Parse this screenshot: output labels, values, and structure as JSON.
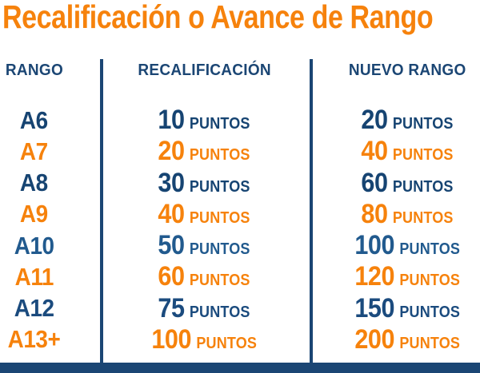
{
  "title": "Recalificación o Avance de Rango",
  "colors": {
    "orange": "#F6820C",
    "navy": "#164472",
    "steel": "#215A8E",
    "chrome": "#1B4674"
  },
  "header": {
    "columns": [
      "RANGO",
      "RECALIFICACIÓN",
      "NUEVO RANGO"
    ]
  },
  "table": {
    "points_suffix": "PUNTOS",
    "rows": [
      {
        "rank": "A6",
        "recalificacion": "10",
        "nuevo_rango": "20",
        "color": "#164472"
      },
      {
        "rank": "A7",
        "recalificacion": "20",
        "nuevo_rango": "40",
        "color": "#F6820C"
      },
      {
        "rank": "A8",
        "recalificacion": "30",
        "nuevo_rango": "60",
        "color": "#164472"
      },
      {
        "rank": "A9",
        "recalificacion": "40",
        "nuevo_rango": "80",
        "color": "#F6820C"
      },
      {
        "rank": "A10",
        "recalificacion": "50",
        "nuevo_rango": "100",
        "color": "#215A8E"
      },
      {
        "rank": "A11",
        "recalificacion": "60",
        "nuevo_rango": "120",
        "color": "#F6820C"
      },
      {
        "rank": "A12",
        "recalificacion": "75",
        "nuevo_rango": "150",
        "color": "#1B4B7E"
      },
      {
        "rank": "A13+",
        "recalificacion": "100",
        "nuevo_rango": "200",
        "color": "#F6820C"
      }
    ]
  },
  "chart_data": {
    "type": "table",
    "title": "Recalificación o Avance de Rango",
    "columns": [
      "RANGO",
      "RECALIFICACIÓN",
      "NUEVO RANGO"
    ],
    "rows": [
      [
        "A6",
        "10 PUNTOS",
        "20 PUNTOS"
      ],
      [
        "A7",
        "20 PUNTOS",
        "40 PUNTOS"
      ],
      [
        "A8",
        "30 PUNTOS",
        "60 PUNTOS"
      ],
      [
        "A9",
        "40 PUNTOS",
        "80 PUNTOS"
      ],
      [
        "A10",
        "50 PUNTOS",
        "100 PUNTOS"
      ],
      [
        "A11",
        "60 PUNTOS",
        "120 PUNTOS"
      ],
      [
        "A12",
        "75 PUNTOS",
        "150 PUNTOS"
      ],
      [
        "A13+",
        "100 PUNTOS",
        "200 PUNTOS"
      ]
    ]
  }
}
